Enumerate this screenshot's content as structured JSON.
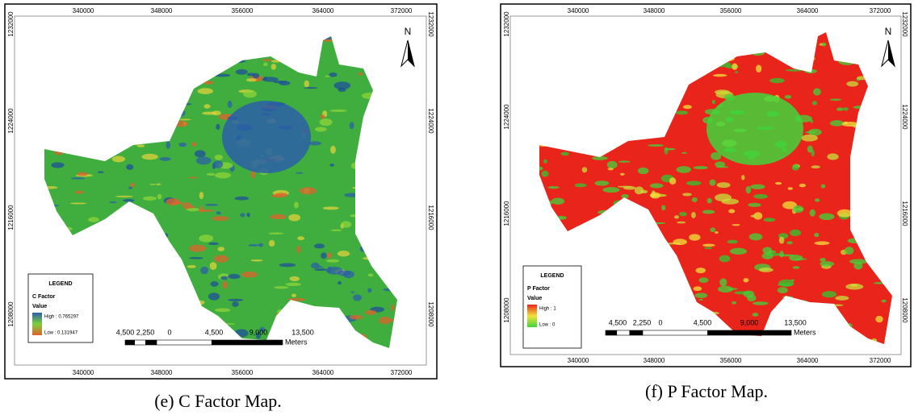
{
  "maps": [
    {
      "caption": "(e) C Factor Map.",
      "x_ticks": [
        "340000",
        "348000",
        "356000",
        "364000",
        "372000"
      ],
      "y_ticks": [
        "1232000",
        "1224000",
        "1216000",
        "1208000"
      ],
      "north": "N",
      "legend": {
        "title": "LEGEND",
        "layer": "C Factor",
        "value_label": "Value",
        "high": "High : 0.765297",
        "low": "Low : 0.131947"
      },
      "scale": {
        "labels": [
          "4,500",
          "2,250",
          "0",
          "4,500",
          "9,000",
          "13,500"
        ],
        "unit": "Meters"
      }
    },
    {
      "caption": "(f) P Factor Map.",
      "x_ticks": [
        "340000",
        "348000",
        "356000",
        "364000",
        "372000"
      ],
      "y_ticks": [
        "1232000",
        "1224000",
        "1216000",
        "1208000"
      ],
      "north": "N",
      "legend": {
        "title": "LEGEND",
        "layer": "P Factor",
        "value_label": "Value",
        "high": "High : 1",
        "low": "Low : 0"
      },
      "scale": {
        "labels": [
          "4,500",
          "2,250",
          "0",
          "4,500",
          "9,000",
          "13,500"
        ],
        "unit": "Meters"
      }
    }
  ]
}
